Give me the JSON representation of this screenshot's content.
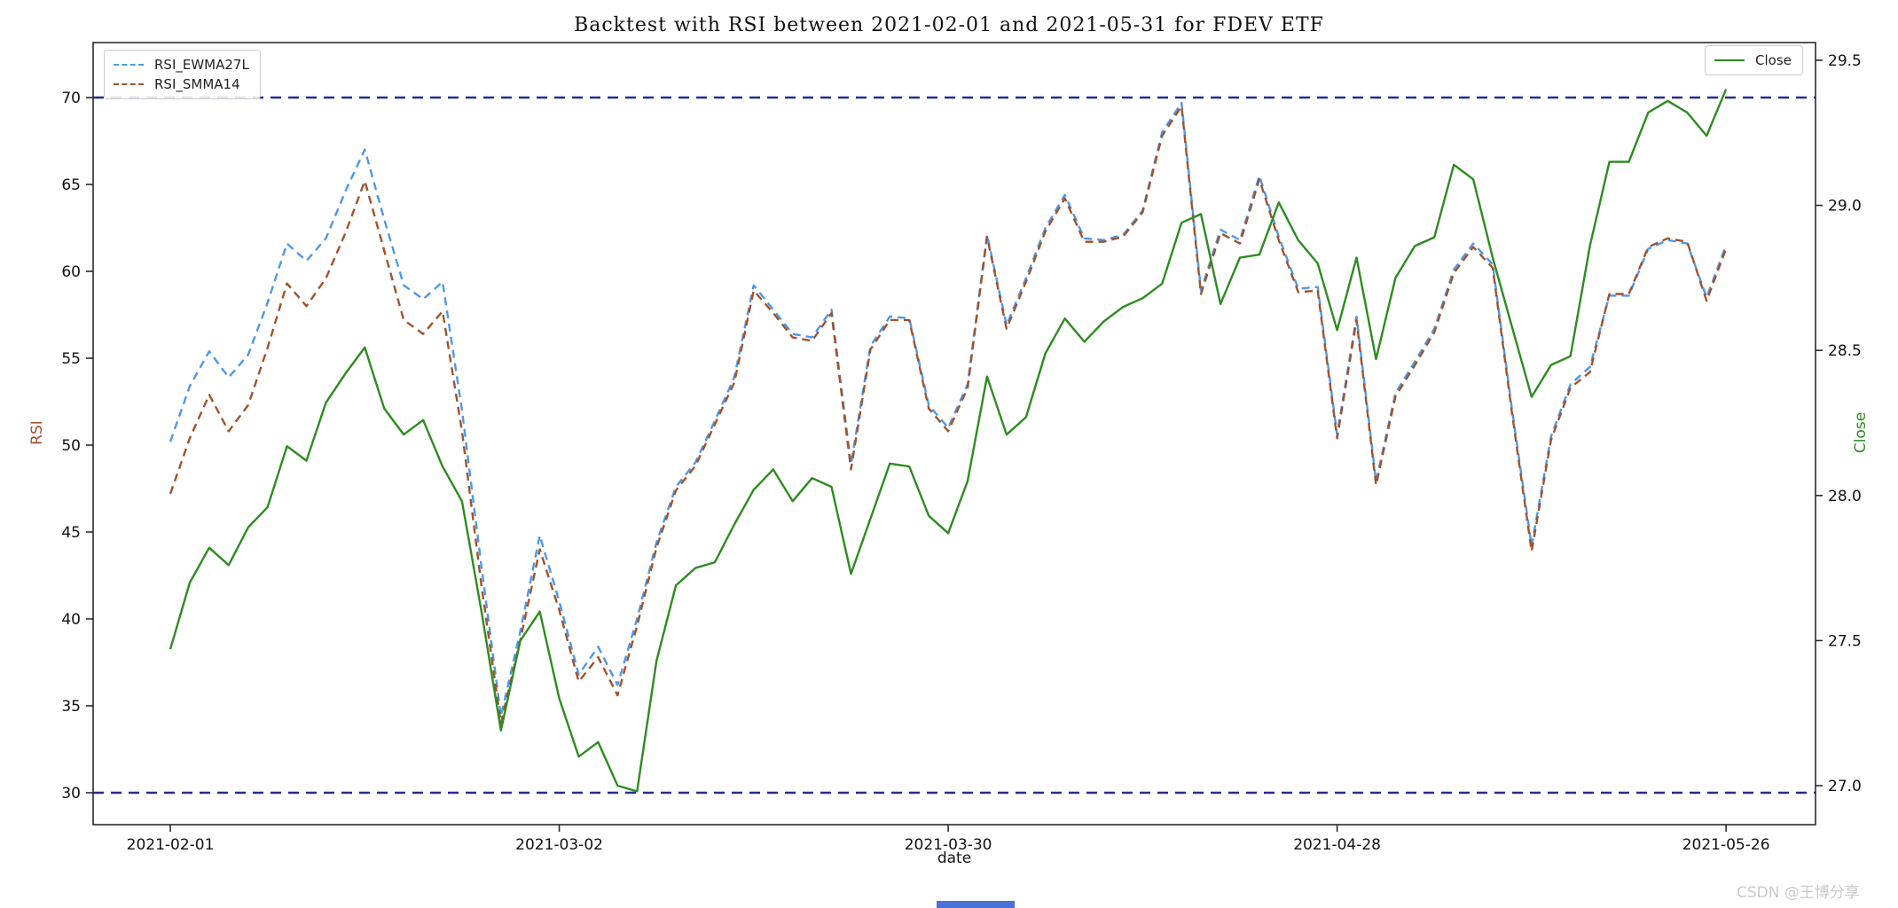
{
  "figure": {
    "title": "Backtest with RSI between 2021-02-01 and 2021-05-31 for FDEV ETF",
    "watermark": "CSDN @王博分享"
  },
  "chart_data": {
    "type": "line",
    "title": "Backtest with RSI between 2021-02-01 and 2021-05-31 for FDEV ETF",
    "xlabel": "date",
    "ylabel_left": "RSI",
    "ylabel_right": "Close",
    "legend_position": [
      "upper left",
      "upper right"
    ],
    "grid": false,
    "colors": {
      "rsi_ewma": "#4f97e8",
      "rsi_smma": "#a0522d",
      "close": "#2e8b22",
      "threshold": "#232e8e",
      "axis_label_left": "#a0522d",
      "axis_label_right": "#2e8b22"
    },
    "left_axis": {
      "label": "RSI",
      "min": 28.2,
      "max": 73.2,
      "ticks": [
        30,
        35,
        40,
        45,
        50,
        55,
        60,
        65,
        70
      ]
    },
    "right_axis": {
      "label": "Close",
      "min": 26.87,
      "max": 29.56,
      "ticks": [
        27.0,
        27.5,
        28.0,
        28.5,
        29.0,
        29.5
      ]
    },
    "thresholds": {
      "lower": 30,
      "upper": 70
    },
    "x_tick_indices": [
      0,
      20,
      40,
      60,
      80
    ],
    "x_tick_labels": [
      "2021-02-01",
      "2021-03-02",
      "2021-03-30",
      "2021-04-28",
      "2021-05-26"
    ],
    "dates": [
      "2021-02-01",
      "2021-02-02",
      "2021-02-03",
      "2021-02-04",
      "2021-02-05",
      "2021-02-08",
      "2021-02-09",
      "2021-02-10",
      "2021-02-11",
      "2021-02-12",
      "2021-02-16",
      "2021-02-17",
      "2021-02-18",
      "2021-02-19",
      "2021-02-22",
      "2021-02-23",
      "2021-02-24",
      "2021-02-25",
      "2021-02-26",
      "2021-03-01",
      "2021-03-02",
      "2021-03-03",
      "2021-03-04",
      "2021-03-05",
      "2021-03-08",
      "2021-03-09",
      "2021-03-10",
      "2021-03-11",
      "2021-03-12",
      "2021-03-15",
      "2021-03-16",
      "2021-03-17",
      "2021-03-18",
      "2021-03-19",
      "2021-03-22",
      "2021-03-23",
      "2021-03-24",
      "2021-03-25",
      "2021-03-26",
      "2021-03-29",
      "2021-03-30",
      "2021-03-31",
      "2021-04-01",
      "2021-04-05",
      "2021-04-06",
      "2021-04-07",
      "2021-04-08",
      "2021-04-09",
      "2021-04-12",
      "2021-04-13",
      "2021-04-14",
      "2021-04-15",
      "2021-04-16",
      "2021-04-19",
      "2021-04-20",
      "2021-04-21",
      "2021-04-22",
      "2021-04-23",
      "2021-04-26",
      "2021-04-27",
      "2021-04-28",
      "2021-04-29",
      "2021-04-30",
      "2021-05-03",
      "2021-05-04",
      "2021-05-05",
      "2021-05-06",
      "2021-05-07",
      "2021-05-10",
      "2021-05-11",
      "2021-05-12",
      "2021-05-13",
      "2021-05-14",
      "2021-05-17",
      "2021-05-18",
      "2021-05-19",
      "2021-05-20",
      "2021-05-21",
      "2021-05-24",
      "2021-05-25",
      "2021-05-26"
    ],
    "series": [
      {
        "name": "RSI_EWMA27L",
        "axis": "left",
        "style": "dashed",
        "color": "#4f97e8",
        "values": [
          50.2,
          53.4,
          55.4,
          53.9,
          55.2,
          58.2,
          61.6,
          60.6,
          61.9,
          64.6,
          67.0,
          63.0,
          59.2,
          58.4,
          59.4,
          52.0,
          43.0,
          34.4,
          39.3,
          44.8,
          41.0,
          36.8,
          38.4,
          36.2,
          40.0,
          44.4,
          47.6,
          49.0,
          51.4,
          53.9,
          59.2,
          57.8,
          56.4,
          56.2,
          57.8,
          48.9,
          55.7,
          57.4,
          57.3,
          52.3,
          51.0,
          53.5,
          62.1,
          56.9,
          59.6,
          62.5,
          64.4,
          61.9,
          61.8,
          62.1,
          63.5,
          68.0,
          69.7,
          58.9,
          62.4,
          61.8,
          65.5,
          62.0,
          59.0,
          59.1,
          50.6,
          57.4,
          47.9,
          53.0,
          54.8,
          56.7,
          60.1,
          61.6,
          60.4,
          52.0,
          44.2,
          50.5,
          53.5,
          54.5,
          58.6,
          58.6,
          61.3,
          61.8,
          61.6,
          58.5,
          61.5
        ]
      },
      {
        "name": "RSI_SMMA14",
        "axis": "left",
        "style": "dashed",
        "color": "#a0522d",
        "values": [
          47.2,
          50.4,
          52.9,
          50.8,
          52.3,
          55.6,
          59.3,
          58.0,
          59.6,
          62.2,
          65.2,
          61.2,
          57.2,
          56.4,
          57.7,
          50.8,
          41.9,
          34.0,
          38.8,
          44.0,
          40.5,
          36.4,
          37.8,
          35.6,
          39.6,
          44.1,
          47.4,
          48.8,
          51.2,
          53.6,
          58.9,
          57.6,
          56.2,
          56.0,
          57.6,
          48.6,
          55.5,
          57.2,
          57.2,
          52.1,
          50.8,
          53.3,
          62.0,
          56.7,
          59.4,
          62.3,
          64.2,
          61.7,
          61.7,
          62.0,
          63.4,
          67.8,
          69.5,
          58.7,
          62.2,
          61.6,
          65.3,
          61.8,
          58.8,
          58.9,
          50.4,
          57.2,
          47.7,
          52.8,
          54.6,
          56.5,
          59.9,
          61.4,
          60.2,
          51.8,
          43.9,
          50.3,
          53.3,
          54.2,
          58.7,
          58.7,
          61.4,
          61.9,
          61.7,
          58.3,
          61.3
        ]
      },
      {
        "name": "Close",
        "axis": "right",
        "style": "solid",
        "color": "#2e8b22",
        "values": [
          27.47,
          27.7,
          27.82,
          27.76,
          27.89,
          27.96,
          28.17,
          28.12,
          28.32,
          28.42,
          28.51,
          28.3,
          28.21,
          28.26,
          28.1,
          27.98,
          27.6,
          27.19,
          27.5,
          27.6,
          27.3,
          27.1,
          27.15,
          27.0,
          26.98,
          27.43,
          27.69,
          27.75,
          27.77,
          27.9,
          28.02,
          28.09,
          27.98,
          28.06,
          28.03,
          27.73,
          27.92,
          28.11,
          28.1,
          27.93,
          27.87,
          28.05,
          28.41,
          28.21,
          28.27,
          28.49,
          28.61,
          28.53,
          28.6,
          28.65,
          28.68,
          28.73,
          28.94,
          28.97,
          28.66,
          28.82,
          28.83,
          29.01,
          28.88,
          28.8,
          28.57,
          28.82,
          28.47,
          28.75,
          28.86,
          28.89,
          29.14,
          29.09,
          28.82,
          28.58,
          28.34,
          28.45,
          28.48,
          28.86,
          29.15,
          29.15,
          29.32,
          29.36,
          29.32,
          29.24,
          29.4
        ]
      }
    ],
    "legend_left_labels": [
      "RSI_EWMA27L",
      "RSI_SMMA14"
    ],
    "legend_right_labels": [
      "Close"
    ]
  }
}
